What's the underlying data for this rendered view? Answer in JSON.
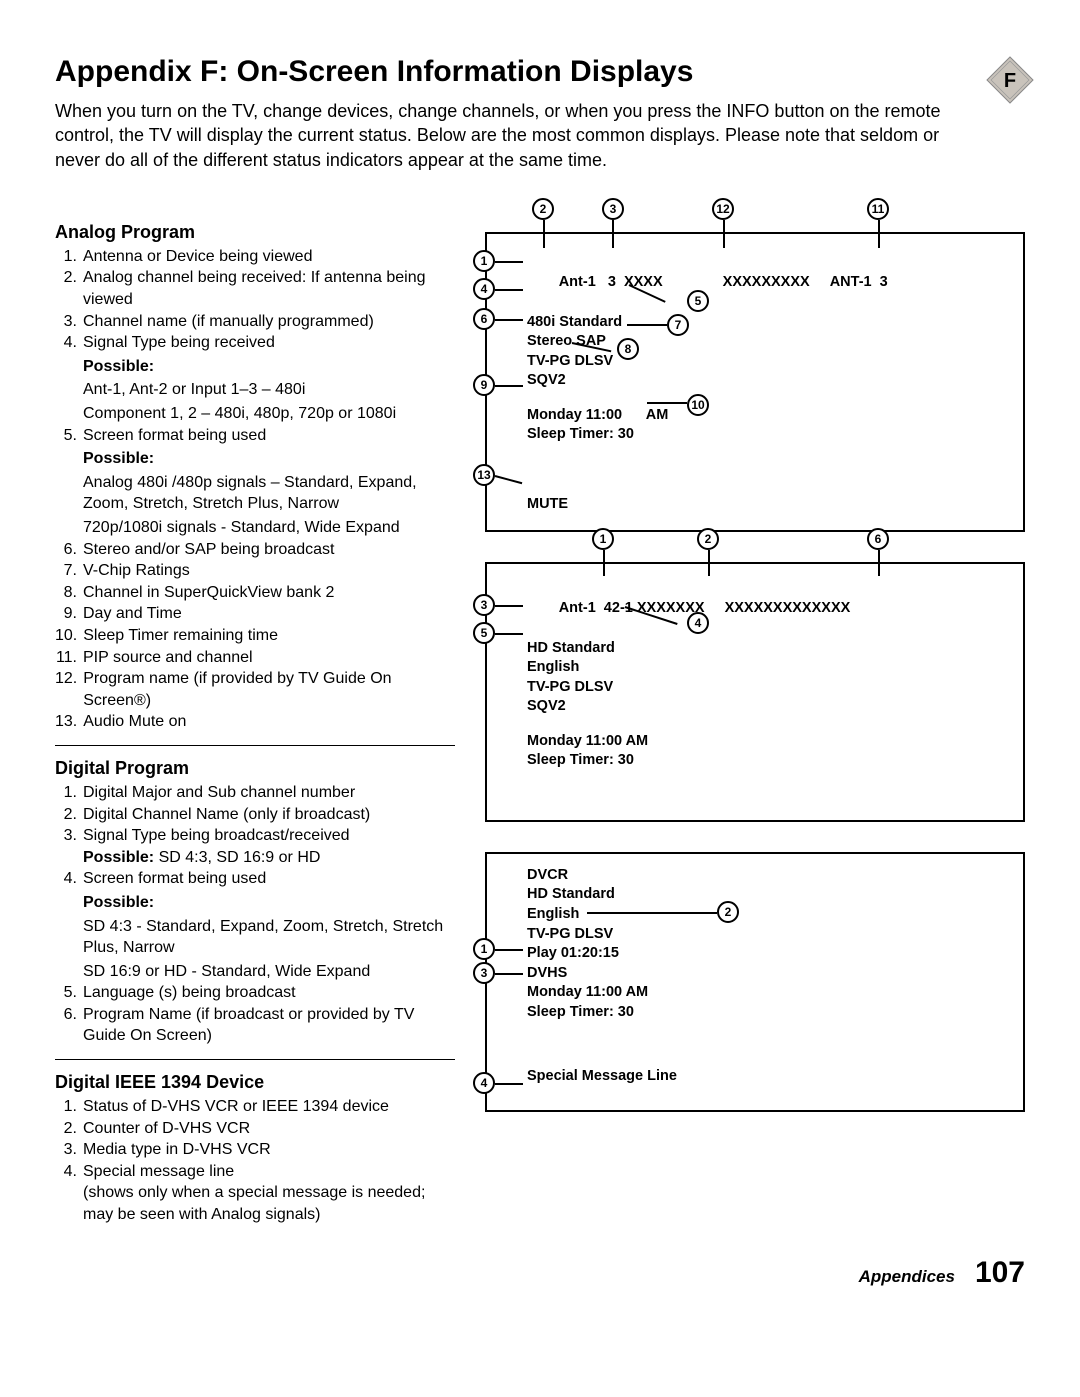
{
  "header": {
    "title": "Appendix F:  On-Screen Information Displays",
    "intro": "When you turn on the TV, change devices, change channels, or when you press the INFO button on the remote control, the TV will display the current status.  Below are the most common displays.  Please note that seldom or never do all of the different status indicators appear at the same time.",
    "badge_letter": "F",
    "badge_fill": "#c9c3bb",
    "badge_stroke": "#6b6b6b"
  },
  "sections": {
    "analog": {
      "title": "Analog Program",
      "items": [
        {
          "n": "1.",
          "t": "Antenna or Device being viewed"
        },
        {
          "n": "2.",
          "t": "Analog channel being received: If antenna being viewed"
        },
        {
          "n": "3.",
          "t": "Channel name (if manually programmed)"
        },
        {
          "n": "4.",
          "t": "Signal Type being received",
          "sub": "Possible:",
          "subtxt": "Ant-1, Ant-2 or Input 1–3 – 480i\nComponent 1, 2 – 480i, 480p, 720p or 1080i"
        },
        {
          "n": "5.",
          "t": "Screen format being used",
          "sub": "Possible:",
          "subtxt": "Analog 480i /480p signals – Standard, Expand, Zoom, Stretch, Stretch Plus, Narrow\n720p/1080i signals - Standard, Wide Expand"
        },
        {
          "n": "6.",
          "t": "Stereo and/or SAP being broadcast"
        },
        {
          "n": "7.",
          "t": "V-Chip Ratings"
        },
        {
          "n": "8.",
          "t": "Channel in SuperQuickView bank 2"
        },
        {
          "n": "9.",
          "t": "Day and Time"
        },
        {
          "n": "10.",
          "t": "Sleep Timer remaining time"
        },
        {
          "n": "11.",
          "t": "PIP source and channel"
        },
        {
          "n": "12.",
          "t": "Program name (if provided by TV Guide On Screen®)"
        },
        {
          "n": "13.",
          "t": "Audio Mute on"
        }
      ]
    },
    "digital": {
      "title": "Digital Program",
      "items": [
        {
          "n": "1.",
          "t": "Digital Major and Sub channel number"
        },
        {
          "n": "2.",
          "t": "Digital Channel Name (only if broadcast)"
        },
        {
          "n": "3.",
          "t": "Signal Type being broadcast/received",
          "sub_inline": "Possible:",
          "sub_inline_txt": " SD 4:3, SD 16:9 or HD"
        },
        {
          "n": "4.",
          "t": "Screen format being used",
          "sub": "Possible:",
          "subtxt": "SD 4:3 - Standard, Expand, Zoom, Stretch, Stretch Plus, Narrow\nSD 16:9 or HD - Standard, Wide Expand"
        },
        {
          "n": "5.",
          "t": "Language (s) being broadcast"
        },
        {
          "n": "6.",
          "t": "Program Name (if broadcast or provided by TV Guide On Screen)"
        }
      ]
    },
    "ieee": {
      "title": "Digital IEEE 1394 Device",
      "items": [
        {
          "n": "1.",
          "t": "Status of D-VHS VCR or IEEE 1394 device"
        },
        {
          "n": "2.",
          "t": "Counter of D-VHS VCR"
        },
        {
          "n": "3.",
          "t": "Media type in D-VHS VCR"
        },
        {
          "n": "4.",
          "t": "Special message line\n(shows only when a special message is needed; may be seen with Analog signals)"
        }
      ]
    }
  },
  "diagrams": {
    "analog": {
      "l1a": "Ant-1   3  XXXX",
      "l1b": "XXXXXXXXX",
      "l1c": "ANT-1  3",
      "l2": "480i Standard",
      "l3": "Stereo SAP",
      "l4": "TV-PG DLSV",
      "l5": "SQV2",
      "l6": "Monday 11:00      AM",
      "l7": "Sleep Timer: 30",
      "l8": "MUTE"
    },
    "digital": {
      "l1a": "Ant-1  42-1 XXXXXXX",
      "l1b": "XXXXXXXXXXXXX",
      "l2": "HD Standard",
      "l3": "English",
      "l4": "TV-PG DLSV",
      "l5": "SQV2",
      "l6": "Monday 11:00 AM",
      "l7": "Sleep Timer: 30"
    },
    "ieee": {
      "l1": "DVCR",
      "l2": "HD Standard",
      "l3": "English",
      "l4": "TV-PG DLSV",
      "l5": "Play 01:20:15",
      "l6": "DVHS",
      "l7": "Monday 11:00 AM",
      "l8": "Sleep Timer: 30",
      "l9": "Special Message Line"
    }
  },
  "footer": {
    "label": "Appendices",
    "page": "107"
  }
}
